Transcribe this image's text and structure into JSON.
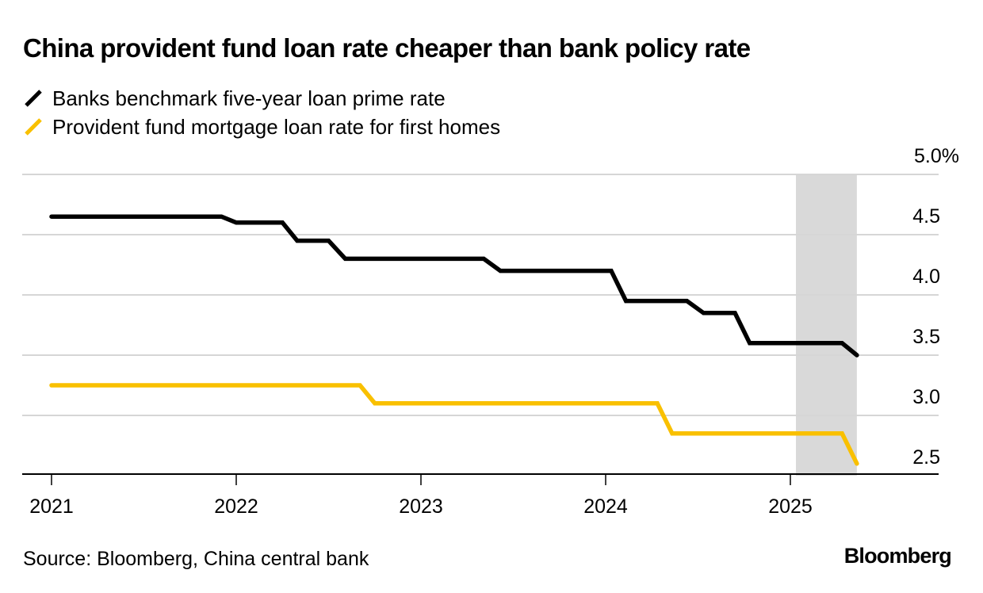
{
  "chart_data": {
    "type": "line",
    "title": "China provident fund loan rate cheaper than bank policy rate",
    "xlabel": "",
    "ylabel": "",
    "ylim": [
      2.5,
      5.0
    ],
    "xlim": [
      2020.85,
      2025.82
    ],
    "y_ticks": [
      {
        "value": 5.0,
        "label": "5.0%"
      },
      {
        "value": 4.5,
        "label": "4.5"
      },
      {
        "value": 4.0,
        "label": "4.0"
      },
      {
        "value": 3.5,
        "label": "3.5"
      },
      {
        "value": 3.0,
        "label": "3.0"
      },
      {
        "value": 2.5,
        "label": "2.5"
      }
    ],
    "x_ticks": [
      {
        "value": 2021,
        "label": "2021"
      },
      {
        "value": 2022,
        "label": "2022"
      },
      {
        "value": 2023,
        "label": "2023"
      },
      {
        "value": 2024,
        "label": "2024"
      },
      {
        "value": 2025,
        "label": "2025"
      }
    ],
    "grid": true,
    "legend_position": "top-left",
    "shaded_region": {
      "x_start": 2025.03,
      "x_end": 2025.36,
      "color": "#d9d9d9"
    },
    "series": [
      {
        "name": "Banks benchmark five-year loan prime rate",
        "color": "#000000",
        "step": true,
        "points": [
          [
            2021.0,
            4.65
          ],
          [
            2021.92,
            4.65
          ],
          [
            2022.0,
            4.6
          ],
          [
            2022.25,
            4.6
          ],
          [
            2022.33,
            4.45
          ],
          [
            2022.5,
            4.45
          ],
          [
            2022.59,
            4.3
          ],
          [
            2023.34,
            4.3
          ],
          [
            2023.43,
            4.2
          ],
          [
            2024.03,
            4.2
          ],
          [
            2024.11,
            3.95
          ],
          [
            2024.44,
            3.95
          ],
          [
            2024.53,
            3.85
          ],
          [
            2024.7,
            3.85
          ],
          [
            2024.78,
            3.6
          ],
          [
            2025.28,
            3.6
          ],
          [
            2025.36,
            3.5
          ]
        ]
      },
      {
        "name": "Provident fund mortgage loan rate for first homes",
        "color": "#f9c000",
        "step": true,
        "points": [
          [
            2021.0,
            3.25
          ],
          [
            2022.67,
            3.25
          ],
          [
            2022.75,
            3.1
          ],
          [
            2024.28,
            3.1
          ],
          [
            2024.36,
            2.85
          ],
          [
            2025.28,
            2.85
          ],
          [
            2025.36,
            2.6
          ]
        ]
      }
    ]
  },
  "header": {
    "title": "China provident fund loan rate cheaper than bank policy rate"
  },
  "legend": {
    "items": [
      {
        "label": "Banks benchmark five-year loan prime rate",
        "color": "#000000"
      },
      {
        "label": "Provident fund mortgage loan rate for first homes",
        "color": "#f9c000"
      }
    ]
  },
  "footer": {
    "source": "Source: Bloomberg, China central bank",
    "logo": "Bloomberg"
  }
}
